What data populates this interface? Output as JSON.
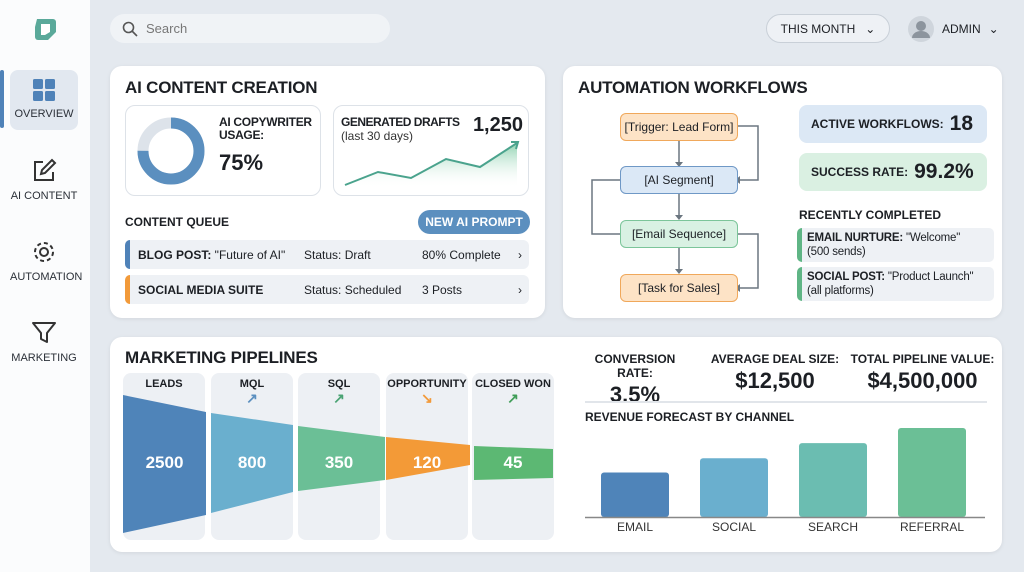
{
  "sidebar": {
    "items": [
      {
        "label": "OVERVIEW",
        "icon": "grid-icon",
        "active": true
      },
      {
        "label": "AI CONTENT",
        "icon": "edit-icon"
      },
      {
        "label": "AUTOMATION",
        "icon": "gear-icon"
      },
      {
        "label": "MARKETING",
        "icon": "funnel-icon"
      }
    ]
  },
  "header": {
    "search_placeholder": "Search",
    "period": "THIS MONTH",
    "user": "ADMIN"
  },
  "ai_content": {
    "title": "AI CONTENT CREATION",
    "usage_label": "AI COPYWRITER USAGE:",
    "usage_value": "75%",
    "usage_fraction": 0.75,
    "drafts_label": "GENERATED DRAFTS",
    "drafts_sub": "(last 30 days)",
    "drafts_value": "1,250",
    "queue_title": "CONTENT QUEUE",
    "new_prompt": "NEW AI PROMPT",
    "queue": [
      {
        "type": "BLOG POST:",
        "name": " \"Future of AI\"",
        "status": "Status: Draft",
        "progress": "80% Complete",
        "color": "#4f82b8"
      },
      {
        "type": "SOCIAL MEDIA SUITE",
        "name": "",
        "status": "Status: Scheduled",
        "progress": "3 Posts",
        "color": "#f29a3a"
      }
    ]
  },
  "automation": {
    "title": "AUTOMATION WORKFLOWS",
    "nodes": [
      "[Trigger: Lead Form]",
      "[AI Segment]",
      "[Email Sequence]",
      "[Task for Sales]"
    ],
    "active_label": "ACTIVE WORKFLOWS:",
    "active_value": "18",
    "success_label": "SUCCESS RATE:",
    "success_value": "99.2%",
    "recent_title": "RECENTLY COMPLETED",
    "recent": [
      {
        "bold": "EMAIL NURTURE:",
        "text": " \"Welcome\"",
        "sub": "(500 sends)"
      },
      {
        "bold": "SOCIAL POST:",
        "text": " \"Product Launch\"",
        "sub": "(all platforms)"
      }
    ]
  },
  "pipelines": {
    "title": "MARKETING PIPELINES",
    "stages": [
      {
        "label": "LEADS",
        "value": "2500",
        "color": "#4f84b9"
      },
      {
        "label": "MQL",
        "value": "800",
        "color": "#6aafce",
        "trend": "up"
      },
      {
        "label": "SQL",
        "value": "350",
        "color": "#6bbf96",
        "trend": "up"
      },
      {
        "label": "OPPORTUNITY",
        "value": "120",
        "color": "#f39a37",
        "trend": "down"
      },
      {
        "label": "CLOSED WON",
        "value": "45",
        "color": "#5cb873",
        "trend": "up"
      }
    ],
    "kpis": [
      {
        "label": "CONVERSION RATE:",
        "value": "3.5%"
      },
      {
        "label": "AVERAGE DEAL SIZE:",
        "value": "$12,500"
      },
      {
        "label": "TOTAL PIPELINE VALUE:",
        "value": "$4,500,000"
      }
    ]
  },
  "chart_data": {
    "type": "bar",
    "title": "REVENUE FORECAST BY CHANNEL",
    "categories": [
      "EMAIL",
      "SOCIAL",
      "SEARCH",
      "REFERRAL"
    ],
    "values": [
      0.5,
      0.66,
      0.83,
      1.0
    ],
    "colors": [
      "#4f84b9",
      "#6aafce",
      "#6bbdb1",
      "#6bbf96"
    ]
  }
}
